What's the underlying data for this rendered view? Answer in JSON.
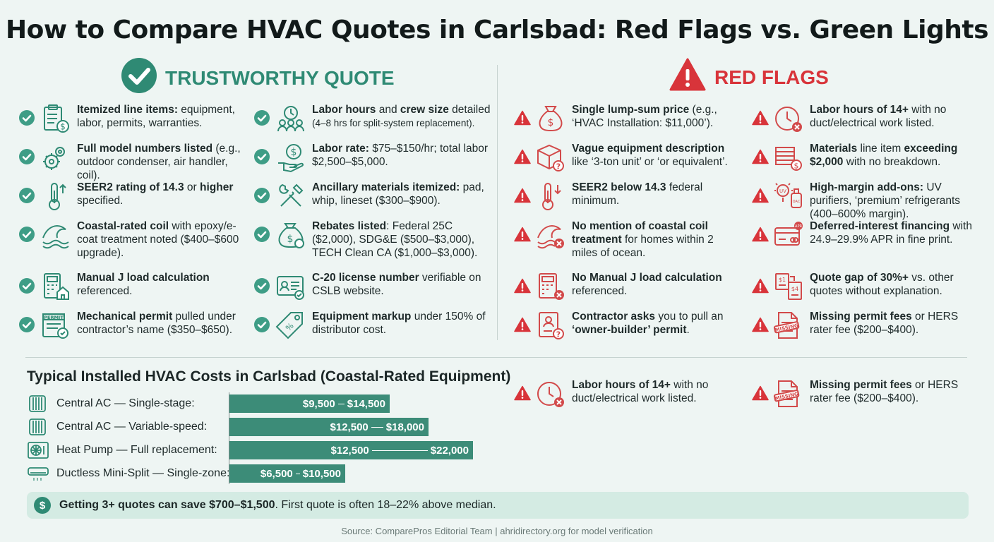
{
  "title": "How to Compare HVAC Quotes in Carlsbad: Red Flags vs. Green Lights",
  "good_heading": "TRUSTWORTHY QUOTE",
  "bad_heading": "RED FLAGS",
  "good_items": [
    {
      "bold": "Itemized line items:",
      "rest": " equipment, labor, permits, warranties.",
      "icon": "clipboard-dollar-icon"
    },
    {
      "bold": "Full model numbers listed",
      "rest": " (e.g., outdoor condenser, air handler, coil).",
      "icon": "gears-icon"
    },
    {
      "bold": "SEER2 rating of 14.3",
      "rest2a": " or ",
      "bold2": "higher",
      "rest": " specified.",
      "icon": "thermometer-up-icon"
    },
    {
      "bold": "Coastal-rated coil",
      "rest": " with epoxy/e-coat treatment noted ($400–$600 upgrade).",
      "icon": "wave-icon"
    },
    {
      "bold": "Manual J load calculation",
      "rest": " referenced.",
      "icon": "calculator-house-icon"
    },
    {
      "bold": "Mechanical permit",
      "rest": " pulled under contractor’s name ($350–$650).",
      "icon": "permit-icon"
    },
    {
      "bold": "Labor hours",
      "rest2a": " and ",
      "bold2": "crew size",
      "rest": " detailed",
      "small": "(4–8 hrs for split-system replacement).",
      "icon": "crew-clock-icon"
    },
    {
      "bold": "Labor rate:",
      "rest": " $75–$150/hr; total labor $2,500–$5,000.",
      "icon": "hand-dollar-icon"
    },
    {
      "bold": "Ancillary materials itemized:",
      "rest": " pad, whip, lineset ($300–$900).",
      "icon": "tools-icon"
    },
    {
      "bold": "Rebates listed",
      "rest": ": Federal 25C ($2,000), SDG&E ($500–$3,000), TECH Clean CA ($1,000–$3,000).",
      "icon": "money-bag-icon"
    },
    {
      "bold": "C-20 license number",
      "rest": " verifiable on CSLB website.",
      "icon": "license-card-icon"
    },
    {
      "bold": "Equipment markup",
      "rest": " under 150% of distributor cost.",
      "icon": "price-tag-icon"
    }
  ],
  "bad_items": [
    {
      "bold": "Single lump-sum price",
      "rest": " (e.g., ‘HVAC Installation: $11,000’).",
      "icon": "money-sack-icon"
    },
    {
      "bold": "Vague equipment description",
      "rest": " like ‘3-ton unit’ or ‘or equivalent’.",
      "icon": "box-question-icon"
    },
    {
      "bold": "SEER2 below 14.3",
      "rest": " federal minimum.",
      "icon": "thermometer-down-icon"
    },
    {
      "bold": "No mention of coastal coil treatment",
      "rest": " for homes within 2 miles of ocean.",
      "icon": "wave-x-icon"
    },
    {
      "bold": "No Manual J load calculation",
      "rest": " referenced.",
      "icon": "calculator-x-icon"
    },
    {
      "bold": "Contractor asks",
      "rest": " you to pull an ",
      "bold2": "‘owner-builder’ permit",
      "rest2": ".",
      "icon": "document-question-icon"
    },
    {
      "bold": "Labor hours of 14+",
      "rest": " with no duct/electrical work listed.",
      "icon": "clock-x-icon"
    },
    {
      "bold": "Materials",
      "rest": " line item ",
      "bold2": "exceeding $2,000",
      "rest2": " with no breakdown.",
      "icon": "cash-stack-icon"
    },
    {
      "bold": "High-margin add-ons:",
      "rest": " UV purifiers, ‘premium’ refrigerants (400–600% margin).",
      "icon": "uv-addon-icon"
    },
    {
      "bold": "Deferred-interest financing",
      "rest": " with 24.9–29.9% APR in fine print.",
      "icon": "credit-card-icon"
    },
    {
      "bold": "Quote gap of 30%+",
      "rest": " vs. other quotes without explanation.",
      "icon": "quote-gap-icon"
    },
    {
      "bold": "Missing permit fees",
      "rest": " or HERS rater fee ($200–$400).",
      "icon": "missing-doc-icon"
    }
  ],
  "bad_extra": [
    {
      "bold": "Labor hours of 14+",
      "rest": " with no duct/electrical work listed.",
      "icon": "clock-x-icon"
    },
    {
      "bold": "Missing permit fees",
      "rest": " or HERS rater fee ($200–$400).",
      "icon": "missing-doc-icon"
    }
  ],
  "icon_labels": {
    "permit": "PERMIT",
    "missing": "MISSING",
    "uv": "UV",
    "oac": "OAC",
    "s1": "$1",
    "s4": "$4",
    "apr": "APR"
  },
  "chart_data": {
    "type": "bar",
    "title": "Typical Installed HVAC Costs in Carlsbad (Coastal-Rated Equipment)",
    "unit": "USD",
    "series": [
      {
        "label": "Central AC — Single-stage:",
        "low": 9500,
        "high": 14500,
        "low_text": "$9,500",
        "high_text": "$14,500",
        "icon": "ac-unit-icon"
      },
      {
        "label": "Central AC — Variable-speed:",
        "low": 12500,
        "high": 18000,
        "low_text": "$12,500",
        "high_text": "$18,000",
        "icon": "ac-unit-icon"
      },
      {
        "label": "Heat Pump — Full replacement:",
        "low": 12500,
        "high": 22000,
        "low_text": "$12,500",
        "high_text": "$22,000",
        "icon": "heat-pump-icon"
      },
      {
        "label": "Ductless Mini-Split — Single-zone:",
        "low": 6500,
        "high": 10500,
        "low_text": "$6,500",
        "high_text": "$10,500",
        "icon": "mini-split-icon"
      }
    ]
  },
  "tip": {
    "bold": "Getting 3+ quotes can save $700–$1,500",
    "rest": ". First quote is often 18–22% above median.",
    "icon_text": "$"
  },
  "source": "Source: ComparePros Editorial Team | ahridirectory.org for model verification",
  "colors": {
    "green": "#3e9d86",
    "red": "#d8343a",
    "bar": "#3c8c78",
    "icon_green": "#2f8a74",
    "icon_red": "#d24a4a"
  }
}
